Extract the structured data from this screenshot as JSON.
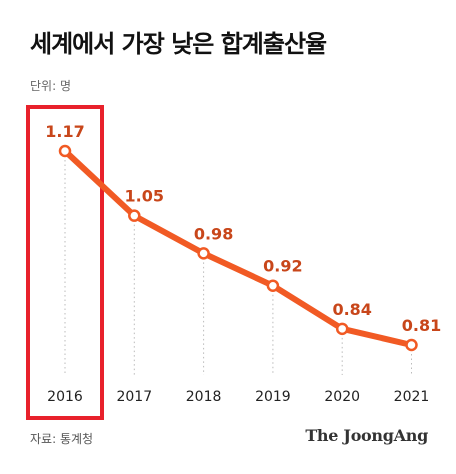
{
  "title": "세계에서 가장 낮은 합계출산율",
  "unit": "단위: 명",
  "source": "자료: 통계청",
  "brand": "The JoongAng",
  "colors": {
    "line": "#f15a24",
    "value_label": "#c8461a",
    "highlight_box": "#e8212b"
  },
  "chart_data": {
    "type": "line",
    "title": "세계에서 가장 낮은 합계출산율",
    "unit": "단위: 명",
    "x": [
      "2016",
      "2017",
      "2018",
      "2019",
      "2020",
      "2021"
    ],
    "series": [
      {
        "values": [
          1.17,
          1.05,
          0.98,
          0.92,
          0.84,
          0.81
        ]
      }
    ],
    "labels": [
      "1.17",
      "1.05",
      "0.98",
      "0.92",
      "0.84",
      "0.81"
    ],
    "highlight": "2016",
    "grid": false,
    "legend": "none"
  }
}
